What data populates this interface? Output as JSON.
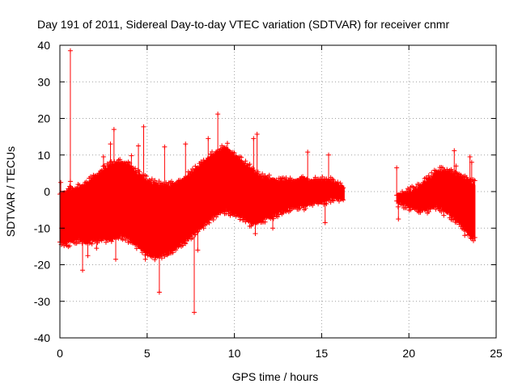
{
  "chart_data": {
    "type": "scatter",
    "title": "Day 191 of 2011, Sidereal Day-to-day VTEC variation (SDTVAR) for receiver cnmr",
    "xlabel": "GPS time / hours",
    "ylabel": "SDTVAR / TECUs",
    "xlim": [
      0,
      25
    ],
    "ylim": [
      -40,
      40
    ],
    "x_ticks": [
      0,
      5,
      10,
      15,
      20,
      25
    ],
    "y_ticks": [
      -40,
      -30,
      -20,
      -10,
      0,
      10,
      20,
      30,
      40
    ],
    "grid": true,
    "marker": "+",
    "color": "#ff0000",
    "series": [
      {
        "name": "SDTVAR",
        "envelope": {
          "x": [
            0,
            0.5,
            1,
            1.5,
            2,
            2.5,
            3,
            3.5,
            4,
            4.5,
            5,
            5.5,
            6,
            6.5,
            7,
            7.5,
            8,
            8.5,
            9,
            9.5,
            10,
            10.5,
            11,
            11.5,
            12,
            12.5,
            13,
            13.5,
            14,
            14.5,
            15,
            15.5,
            16,
            16.3
          ],
          "upper": [
            -1,
            0.5,
            1,
            2,
            4,
            6,
            7.5,
            8,
            7,
            5,
            3,
            2,
            1.5,
            2,
            3,
            5,
            7,
            9,
            11,
            12,
            10,
            8,
            6,
            4,
            3.5,
            3,
            3,
            3,
            3.5,
            3,
            3,
            3,
            2,
            1
          ],
          "lower": [
            -14,
            -14,
            -13,
            -14,
            -13,
            -13,
            -13,
            -12,
            -13,
            -15,
            -17,
            -18,
            -17,
            -16,
            -14,
            -12,
            -10,
            -8,
            -6,
            -5,
            -6,
            -7,
            -9,
            -8,
            -7,
            -6,
            -5,
            -4,
            -4,
            -3,
            -3,
            -2,
            -2,
            -2
          ]
        },
        "envelope2": {
          "x": [
            19.3,
            20,
            20.5,
            21,
            21.5,
            22,
            22.5,
            23,
            23.5,
            23.8
          ],
          "upper": [
            -1,
            0,
            1,
            3,
            5,
            6,
            5,
            4,
            3,
            2
          ],
          "lower": [
            -3,
            -4,
            -5,
            -5,
            -4,
            -5,
            -7,
            -9,
            -12,
            -13
          ]
        },
        "outliers": [
          [
            0.6,
            38.5
          ],
          [
            3.1,
            17
          ],
          [
            4.8,
            17.7
          ],
          [
            9.05,
            21.2
          ],
          [
            11.3,
            15.7
          ],
          [
            14.2,
            10.8
          ],
          [
            15.4,
            10
          ],
          [
            22.6,
            11.2
          ],
          [
            23.5,
            9.5
          ],
          [
            1.3,
            -21.5
          ],
          [
            5.7,
            -27.5
          ],
          [
            7.7,
            -33
          ],
          [
            7.9,
            -16
          ],
          [
            6.2,
            -17
          ],
          [
            3.2,
            -18.5
          ],
          [
            4.9,
            -18.5
          ],
          [
            0.1,
            -10
          ],
          [
            10.5,
            -7
          ],
          [
            12.0,
            -5.5
          ],
          [
            15.2,
            -8.5
          ],
          [
            19.4,
            -7.5
          ],
          [
            20.8,
            -5
          ],
          [
            22.0,
            -6.5
          ],
          [
            23.0,
            -8
          ],
          [
            23.2,
            -12
          ],
          [
            0.05,
            2.5
          ],
          [
            0.6,
            2.8
          ],
          [
            2.9,
            13
          ],
          [
            4.5,
            12.5
          ],
          [
            6.0,
            12.2
          ],
          [
            7.2,
            13
          ],
          [
            8.5,
            14.5
          ],
          [
            11.1,
            14.5
          ],
          [
            2.5,
            9.5
          ],
          [
            4.1,
            9.8
          ],
          [
            13.1,
            3
          ],
          [
            9.6,
            13.2
          ],
          [
            19.3,
            6.5
          ],
          [
            22.7,
            7
          ],
          [
            23.6,
            8
          ],
          [
            1.6,
            -17.5
          ],
          [
            2.1,
            -15.5
          ],
          [
            11.2,
            -11.5
          ],
          [
            12.2,
            -10
          ],
          [
            6.8,
            -15
          ],
          [
            5.0,
            -16
          ]
        ]
      }
    ]
  }
}
